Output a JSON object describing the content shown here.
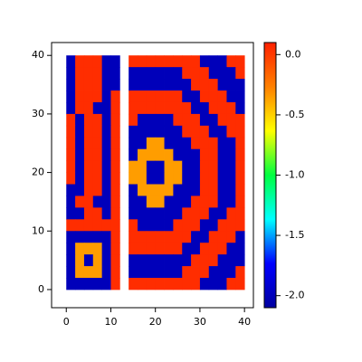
{
  "chart_data": {
    "type": "heatmap",
    "xlim": [
      -3.3,
      42
    ],
    "ylim": [
      -3.1,
      42.2
    ],
    "xticks": [
      0,
      10,
      20,
      30,
      40
    ],
    "yticks": [
      0,
      10,
      20,
      30,
      40
    ],
    "zlim": [
      -2.1,
      0.1
    ],
    "zticks": [
      {
        "value": 0,
        "label": "0.0"
      },
      -0.5,
      {
        "value": -1,
        "label": "-1.0"
      },
      -1.5,
      {
        "value": -2,
        "label": "-2.0"
      }
    ],
    "colormap": [
      "#0000a0",
      "#0000ff",
      "#00ffff",
      "#00ff40",
      "#ffff00",
      "#ff8000",
      "#ff2000"
    ],
    "panels": [
      {
        "xbins": [
          0,
          2,
          4,
          6,
          8,
          10,
          12
        ],
        "ybins": [
          40,
          38,
          36,
          34,
          32,
          30,
          28,
          26,
          24,
          22,
          20,
          18,
          16,
          14,
          12,
          10,
          8,
          6,
          4,
          2,
          0
        ],
        "z": [
          [
            -2.0,
            0.05,
            0.05,
            0.05,
            -2.0,
            -2.0
          ],
          [
            -2.0,
            0.05,
            0.05,
            0.05,
            -2.0,
            -2.0
          ],
          [
            -2.0,
            0.05,
            0.05,
            0.05,
            -2.0,
            -2.0
          ],
          [
            -2.0,
            0.05,
            0.05,
            0.05,
            -2.0,
            0.05
          ],
          [
            -2.0,
            0.05,
            0.05,
            -2.0,
            -2.0,
            0.05
          ],
          [
            0.05,
            -2.0,
            0.05,
            0.05,
            -2.0,
            0.05
          ],
          [
            0.05,
            -2.0,
            0.05,
            0.05,
            -2.0,
            0.05
          ],
          [
            0.05,
            -2.0,
            0.05,
            0.05,
            -2.0,
            0.05
          ],
          [
            0.05,
            -2.0,
            0.05,
            0.05,
            -2.0,
            0.05
          ],
          [
            0.05,
            -2.0,
            0.05,
            0.05,
            -2.0,
            0.05
          ],
          [
            0.05,
            -2.0,
            0.05,
            0.05,
            -2.0,
            0.05
          ],
          [
            -2.0,
            -2.0,
            0.05,
            0.05,
            -2.0,
            0.05
          ],
          [
            -2.0,
            0.05,
            0.05,
            -2.0,
            -2.0,
            0.05
          ],
          [
            -2.0,
            -2.0,
            0.05,
            0.05,
            -2.0,
            0.05
          ],
          [
            0.05,
            0.05,
            0.05,
            0.05,
            0.05,
            0.05
          ],
          [
            -2.0,
            -2.0,
            -2.0,
            -2.0,
            -2.0,
            0.05
          ],
          [
            -2.0,
            -0.35,
            -0.35,
            -0.35,
            -2.0,
            0.05
          ],
          [
            -2.0,
            -0.35,
            -2.0,
            -0.35,
            -2.0,
            0.05
          ],
          [
            -2.0,
            -0.35,
            -0.35,
            -0.35,
            -2.0,
            0.05
          ],
          [
            -2.0,
            -2.0,
            -2.0,
            -2.0,
            -2.0,
            0.05
          ]
        ]
      },
      {
        "xbins": [
          14,
          16,
          18,
          20,
          22,
          24,
          26,
          28,
          30,
          32,
          34,
          36,
          38,
          40
        ],
        "ybins": [
          40,
          38,
          36,
          34,
          32,
          30,
          28,
          26,
          24,
          22,
          20,
          18,
          16,
          14,
          12,
          10,
          8,
          6,
          4,
          2,
          0
        ],
        "z": [
          [
            0.05,
            0.05,
            0.05,
            0.05,
            0.05,
            0.05,
            0.05,
            0.05,
            -2.0,
            -2.0,
            -2.0,
            0.05,
            0.05
          ],
          [
            -2.0,
            -2.0,
            -2.0,
            -2.0,
            -2.0,
            -2.0,
            0.05,
            0.05,
            0.05,
            -2.0,
            -2.0,
            -2.0,
            0.05
          ],
          [
            -2.0,
            -2.0,
            -2.0,
            -2.0,
            -2.0,
            -2.0,
            -2.0,
            0.05,
            0.05,
            0.05,
            -2.0,
            -2.0,
            -2.0
          ],
          [
            0.05,
            0.05,
            0.05,
            0.05,
            0.05,
            0.05,
            -2.0,
            -2.0,
            0.05,
            0.05,
            0.05,
            -2.0,
            -2.0
          ],
          [
            0.05,
            0.05,
            0.05,
            0.05,
            0.05,
            0.05,
            0.05,
            -2.0,
            -2.0,
            0.05,
            0.05,
            0.05,
            -2.0
          ],
          [
            0.05,
            -2.0,
            -2.0,
            -2.0,
            -2.0,
            0.05,
            0.05,
            0.05,
            -2.0,
            -2.0,
            0.05,
            0.05,
            0.05
          ],
          [
            -2.0,
            -2.0,
            -2.0,
            -2.0,
            -2.0,
            -2.0,
            0.05,
            0.05,
            0.05,
            -2.0,
            -2.0,
            0.05,
            0.05
          ],
          [
            -2.0,
            -2.0,
            -0.35,
            -0.35,
            -2.0,
            -2.0,
            -2.0,
            0.05,
            0.05,
            0.05,
            -2.0,
            -2.0,
            0.05
          ],
          [
            -2.0,
            -0.35,
            -0.35,
            -0.35,
            -0.35,
            -2.0,
            -2.0,
            -2.0,
            0.05,
            0.05,
            -2.0,
            -2.0,
            0.05
          ],
          [
            -0.35,
            -0.35,
            -2.0,
            -2.0,
            -0.35,
            -0.35,
            -2.0,
            -2.0,
            0.05,
            0.05,
            -2.0,
            -2.0,
            0.05
          ],
          [
            -0.35,
            -0.35,
            -2.0,
            -2.0,
            -0.35,
            -0.35,
            -2.0,
            -2.0,
            0.05,
            0.05,
            -2.0,
            -2.0,
            0.05
          ],
          [
            -2.0,
            -0.35,
            -0.35,
            -0.35,
            -0.35,
            -2.0,
            -2.0,
            -2.0,
            0.05,
            0.05,
            -2.0,
            -2.0,
            0.05
          ],
          [
            -2.0,
            -2.0,
            -0.35,
            -0.35,
            -2.0,
            -2.0,
            -2.0,
            0.05,
            0.05,
            0.05,
            -2.0,
            -2.0,
            0.05
          ],
          [
            -2.0,
            -2.0,
            -2.0,
            -2.0,
            -2.0,
            -2.0,
            0.05,
            0.05,
            0.05,
            -2.0,
            -2.0,
            0.05,
            0.05
          ],
          [
            0.05,
            -2.0,
            -2.0,
            -2.0,
            -2.0,
            0.05,
            0.05,
            0.05,
            -2.0,
            -2.0,
            0.05,
            0.05,
            0.05
          ],
          [
            0.05,
            0.05,
            0.05,
            0.05,
            0.05,
            0.05,
            0.05,
            -2.0,
            -2.0,
            0.05,
            0.05,
            0.05,
            -2.0
          ],
          [
            0.05,
            0.05,
            0.05,
            0.05,
            0.05,
            0.05,
            -2.0,
            -2.0,
            0.05,
            0.05,
            0.05,
            -2.0,
            -2.0
          ],
          [
            -2.0,
            -2.0,
            -2.0,
            -2.0,
            -2.0,
            -2.0,
            -2.0,
            0.05,
            0.05,
            0.05,
            -2.0,
            -2.0,
            -2.0
          ],
          [
            -2.0,
            -2.0,
            -2.0,
            -2.0,
            -2.0,
            -2.0,
            0.05,
            0.05,
            0.05,
            -2.0,
            -2.0,
            -2.0,
            0.05
          ],
          [
            0.05,
            0.05,
            0.05,
            0.05,
            0.05,
            0.05,
            0.05,
            0.05,
            -2.0,
            -2.0,
            -2.0,
            0.05,
            0.05
          ]
        ]
      }
    ]
  }
}
